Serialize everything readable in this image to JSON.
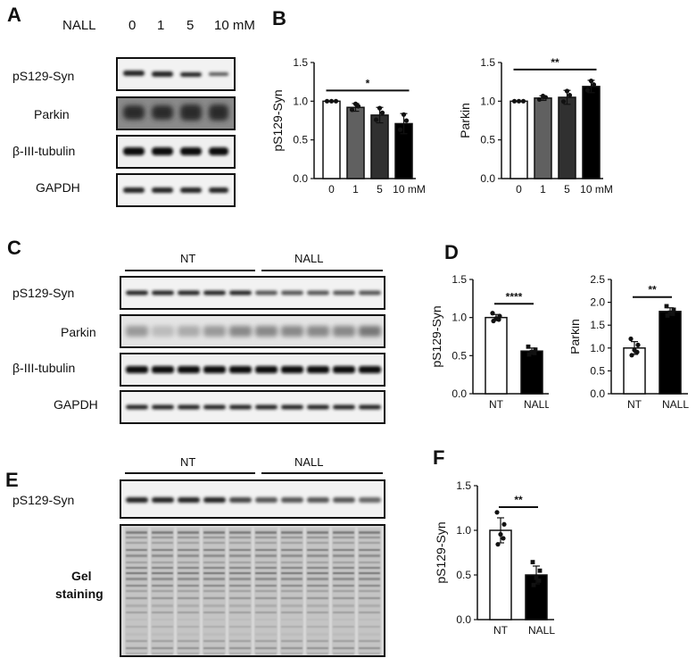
{
  "panels": {
    "A": {
      "letter": "A",
      "treatment_label": "NALL",
      "lanes": [
        "0",
        "1",
        "5",
        "10 mM"
      ],
      "rows": [
        "pS129-Syn",
        "Parkin",
        "β-III-tubulin",
        "GAPDH"
      ]
    },
    "B": {
      "letter": "B"
    },
    "C": {
      "letter": "C",
      "group1": "NT",
      "group2": "NALL",
      "rows": [
        "pS129-Syn",
        "Parkin",
        "β-III-tubulin",
        "GAPDH"
      ]
    },
    "D": {
      "letter": "D"
    },
    "E": {
      "letter": "E",
      "group1": "NT",
      "group2": "NALL",
      "row1": "pS129-Syn",
      "gel_line1": "Gel",
      "gel_line2": "staining"
    },
    "F": {
      "letter": "F"
    }
  },
  "chart_data": [
    {
      "id": "B1",
      "type": "bar",
      "ylabel": "pS129-Syn",
      "categories": [
        "0",
        "1",
        "5",
        "10 mM"
      ],
      "values": [
        1.0,
        0.92,
        0.82,
        0.71
      ],
      "errors": [
        0.0,
        0.05,
        0.1,
        0.13
      ],
      "fills": [
        "#ffffff",
        "#606060",
        "#303030",
        "#000000"
      ],
      "ylim": [
        0,
        1.5
      ],
      "yticks": [
        "0.0",
        "0.5",
        "1.0",
        "1.5"
      ],
      "sig": "*"
    },
    {
      "id": "B2",
      "type": "bar",
      "ylabel": "Parkin",
      "categories": [
        "0",
        "1",
        "5",
        "10 mM"
      ],
      "values": [
        1.0,
        1.04,
        1.05,
        1.19
      ],
      "errors": [
        0.0,
        0.03,
        0.09,
        0.08
      ],
      "fills": [
        "#ffffff",
        "#606060",
        "#303030",
        "#000000"
      ],
      "ylim": [
        0,
        1.5
      ],
      "yticks": [
        "0.0",
        "0.5",
        "1.0",
        "1.5"
      ],
      "sig": "**"
    },
    {
      "id": "D1",
      "type": "bar",
      "ylabel": "pS129-Syn",
      "categories": [
        "NT",
        "NALL"
      ],
      "values": [
        1.0,
        0.56
      ],
      "errors": [
        0.04,
        0.04
      ],
      "fills": [
        "#ffffff",
        "#000000"
      ],
      "ylim": [
        0,
        1.5
      ],
      "yticks": [
        "0.0",
        "0.5",
        "1.0",
        "1.5"
      ],
      "sig": "****"
    },
    {
      "id": "D2",
      "type": "bar",
      "ylabel": "Parkin",
      "categories": [
        "NT",
        "NALL"
      ],
      "values": [
        1.0,
        1.8
      ],
      "errors": [
        0.14,
        0.08
      ],
      "fills": [
        "#ffffff",
        "#000000"
      ],
      "ylim": [
        0,
        2.5
      ],
      "yticks": [
        "0.0",
        "0.5",
        "1.0",
        "1.5",
        "2.0",
        "2.5"
      ],
      "sig": "**"
    },
    {
      "id": "F1",
      "type": "bar",
      "ylabel": "pS129-Syn",
      "categories": [
        "NT",
        "NALL"
      ],
      "values": [
        1.0,
        0.5
      ],
      "errors": [
        0.14,
        0.1
      ],
      "fills": [
        "#ffffff",
        "#000000"
      ],
      "ylim": [
        0,
        1.5
      ],
      "yticks": [
        "0.0",
        "0.5",
        "1.0",
        "1.5"
      ],
      "sig": "**"
    }
  ]
}
